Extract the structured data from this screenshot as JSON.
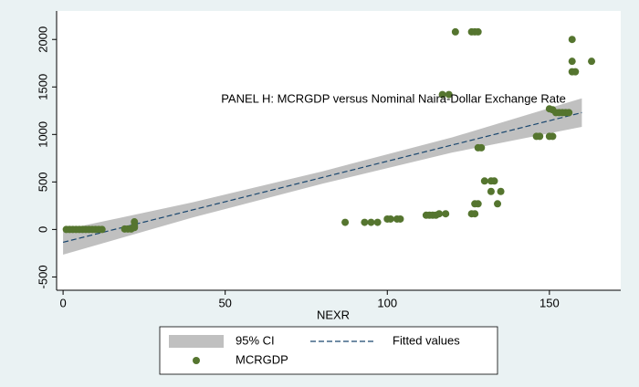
{
  "chart_data": {
    "type": "scatter",
    "title": "PANEL H: MCRGDP versus Nominal Naira-Dollar Exchange Rate",
    "x_label": "NEXR",
    "xlim": [
      -2,
      172
    ],
    "ylim": [
      -640,
      2300
    ],
    "xticks": [
      0,
      50,
      100,
      150
    ],
    "yticks": [
      -500,
      0,
      500,
      1000,
      1500,
      2000
    ],
    "legend": "bottom",
    "series": [
      {
        "name": "95% CI",
        "type": "area",
        "color": "#c0c0c0",
        "x": [
          0,
          40,
          80,
          120,
          160
        ],
        "lower": [
          -265,
          126,
          482,
          809,
          1080
        ],
        "upper": [
          -5,
          286,
          612,
          969,
          1380
        ]
      },
      {
        "name": "Fitted values",
        "type": "line",
        "color": "#1a476f",
        "x": [
          0,
          160
        ],
        "values": [
          -135,
          1230
        ]
      },
      {
        "name": "MCRGDP",
        "type": "scatter",
        "color": "#55752f",
        "x": [
          1,
          2,
          3,
          4,
          5,
          6,
          7,
          8,
          9,
          10,
          11,
          12,
          19,
          20,
          21,
          22,
          22,
          22,
          87,
          93,
          95,
          97,
          100,
          101,
          103,
          104,
          112,
          113,
          114,
          115,
          116,
          118,
          117,
          119,
          121,
          126,
          127,
          127,
          128,
          126,
          127,
          128,
          128,
          129,
          130,
          132,
          133,
          132,
          135,
          134,
          146,
          147,
          150,
          151,
          150,
          151,
          152,
          153,
          154,
          155,
          156,
          157,
          157,
          157,
          158,
          163
        ],
        "values": [
          0,
          0,
          0,
          0,
          0,
          0,
          0,
          0,
          0,
          0,
          0,
          0,
          5,
          5,
          5,
          80,
          20,
          40,
          75,
          75,
          75,
          75,
          110,
          110,
          110,
          110,
          150,
          150,
          150,
          150,
          165,
          165,
          1420,
          1420,
          2080,
          165,
          165,
          270,
          270,
          2080,
          2080,
          2080,
          860,
          860,
          510,
          510,
          510,
          400,
          400,
          270,
          980,
          980,
          980,
          980,
          1270,
          1260,
          1230,
          1230,
          1230,
          1230,
          1230,
          2000,
          1770,
          1660,
          1660,
          1770
        ]
      }
    ]
  }
}
